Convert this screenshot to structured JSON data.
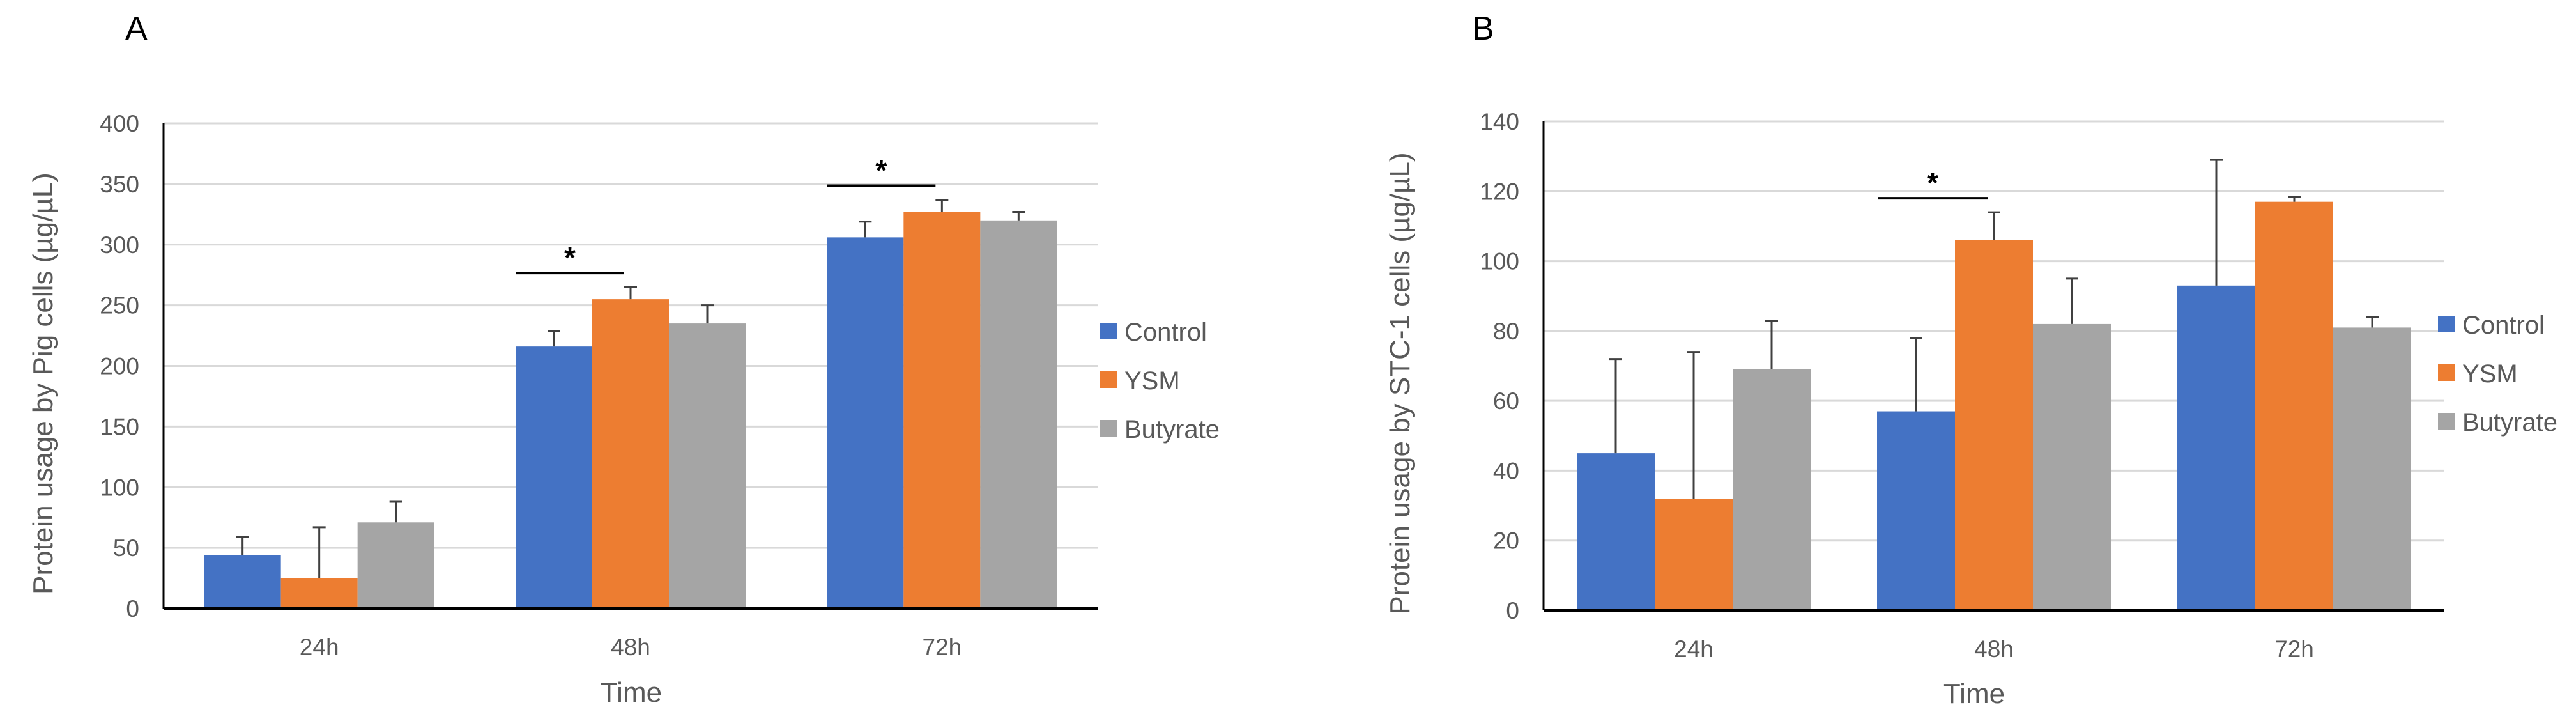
{
  "colors": {
    "control": "#4472C4",
    "ysm": "#ED7D31",
    "butyrate": "#A5A5A5",
    "grid": "#D9D9D9",
    "axis": "#000000",
    "error": "#404040"
  },
  "chart_data": [
    {
      "panel": "A",
      "type": "bar",
      "title": "",
      "xlabel": "Time",
      "ylabel": "Protein usage by Pig cells (µg/µL)",
      "ylim": [
        0,
        400
      ],
      "yticks": [
        0,
        50,
        100,
        150,
        200,
        250,
        300,
        350,
        400
      ],
      "categories": [
        "24h",
        "48h",
        "72h"
      ],
      "grid": true,
      "legend": "right",
      "series": [
        {
          "name": "Control",
          "key": "control",
          "values": [
            44,
            216,
            306
          ],
          "errors": [
            15,
            13,
            13
          ]
        },
        {
          "name": "YSM",
          "key": "ysm",
          "values": [
            25,
            255,
            327
          ],
          "errors": [
            42,
            10,
            10
          ]
        },
        {
          "name": "Butyrate",
          "key": "butyrate",
          "values": [
            71,
            235,
            320
          ],
          "errors": [
            17,
            15,
            7
          ]
        }
      ],
      "significance": [
        {
          "category": 1,
          "from": 0,
          "to": 1,
          "label": "*"
        },
        {
          "category": 2,
          "from": 0,
          "to": 1,
          "label": "*"
        }
      ]
    },
    {
      "panel": "B",
      "type": "bar",
      "title": "",
      "xlabel": "Time",
      "ylabel": "Protein usage by STC-1 cells (µg/µL)",
      "ylim": [
        0,
        140
      ],
      "yticks": [
        0,
        20,
        40,
        60,
        80,
        100,
        120,
        140
      ],
      "categories": [
        "24h",
        "48h",
        "72h"
      ],
      "grid": true,
      "legend": "right",
      "series": [
        {
          "name": "Control",
          "key": "control",
          "values": [
            45,
            57,
            93
          ],
          "errors": [
            27,
            21,
            36
          ]
        },
        {
          "name": "YSM",
          "key": "ysm",
          "values": [
            32,
            106,
            117
          ],
          "errors": [
            42,
            8,
            1.5
          ]
        },
        {
          "name": "Butyrate",
          "key": "butyrate",
          "values": [
            69,
            82,
            81
          ],
          "errors": [
            14,
            13,
            3
          ]
        }
      ],
      "significance": [
        {
          "category": 1,
          "from": 0,
          "to": 1,
          "label": "*"
        }
      ]
    }
  ]
}
